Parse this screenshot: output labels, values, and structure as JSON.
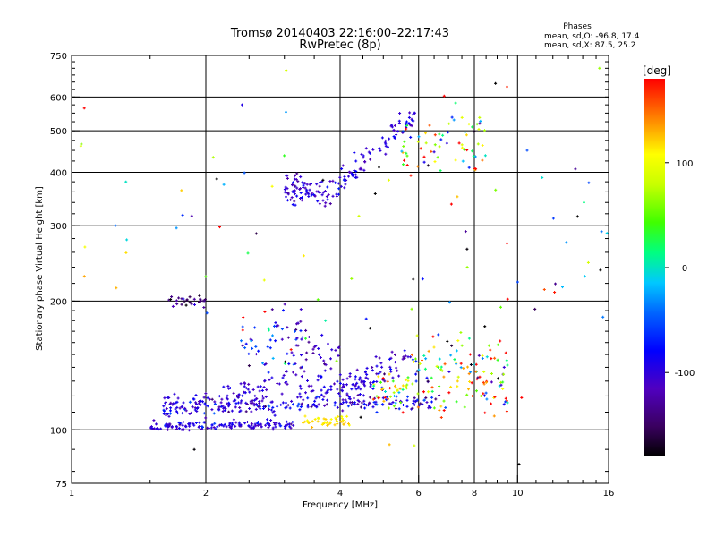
{
  "chart_data": {
    "type": "scatter",
    "title": "Tromsø 20140403 22:16:00–22:17:43",
    "subtitle": "RwPretec (8p)",
    "xlabel": "Frequency [MHz]",
    "ylabel": "Stationary phase Virtual Height [km]",
    "x_scale": "log",
    "y_scale": "log",
    "xlim": [
      1,
      16
    ],
    "ylim": [
      75,
      750
    ],
    "x_ticks": [
      1,
      2,
      4,
      6,
      8,
      10,
      16
    ],
    "x_tick_labels": [
      "1",
      "2",
      "4",
      "6",
      "8",
      "10",
      "16"
    ],
    "y_ticks": [
      75,
      100,
      200,
      300,
      400,
      500,
      600,
      750
    ],
    "y_tick_labels": [
      "75",
      "100",
      "200",
      "300",
      "400",
      "500",
      "600",
      "750"
    ],
    "grid_x": [
      2,
      4,
      6,
      8,
      10
    ],
    "grid_y": [
      100,
      200,
      300,
      400,
      500,
      600
    ],
    "grid": true,
    "stats": {
      "heading": "Phases",
      "line_o": "mean, sd,O: -96.8, 17.4",
      "line_x": "mean, sd,X:  87.5, 25.2"
    },
    "colorbar": {
      "label": "[deg]",
      "range": [
        -180,
        180
      ],
      "ticks": [
        100,
        0,
        -100
      ],
      "tick_labels": [
        "100",
        "0",
        "-100"
      ]
    },
    "point_groups": [
      {
        "x_range": [
          1.5,
          3.2
        ],
        "y_base": 102,
        "y_slope": 0.01,
        "y_spread": 0.012,
        "count": 140,
        "phase_mean": -100,
        "phase_sd": 15
      },
      {
        "x_range": [
          3.3,
          4.2
        ],
        "y_base": 105,
        "y_slope": 0.0,
        "y_spread": 0.015,
        "count": 45,
        "phase_mean": 115,
        "phase_sd": 8
      },
      {
        "x_range": [
          1.6,
          6.5
        ],
        "y_base": 112,
        "y_slope": 0.03,
        "y_spread": 0.02,
        "count": 200,
        "phase_mean": -95,
        "phase_sd": 25
      },
      {
        "x_range": [
          1.6,
          2.5
        ],
        "y_base": 115,
        "y_slope": 0.09,
        "y_spread": 0.03,
        "count": 45,
        "phase_mean": -100,
        "phase_sd": 10
      },
      {
        "x_range": [
          2.2,
          3.2
        ],
        "y_base": 118,
        "y_slope": 0.32,
        "y_spread": 0.04,
        "count": 55,
        "phase_mean": -105,
        "phase_sd": 10
      },
      {
        "x_range": [
          3.2,
          4.6
        ],
        "y_base": 118,
        "y_slope": 0.3,
        "y_spread": 0.04,
        "count": 55,
        "phase_mean": -100,
        "phase_sd": 10
      },
      {
        "x_range": [
          4.0,
          5.8
        ],
        "y_base": 118,
        "y_slope": 0.62,
        "y_spread": 0.04,
        "count": 70,
        "phase_mean": -100,
        "phase_sd": 15
      },
      {
        "x_range": [
          2.4,
          3.3
        ],
        "y_base": 155,
        "y_slope": 0.25,
        "y_spread": 0.09,
        "count": 55,
        "phase_mean": -75,
        "phase_sd": 40
      },
      {
        "x_range": [
          3.2,
          4.0
        ],
        "y_base": 150,
        "y_slope": 0.0,
        "y_spread": 0.06,
        "count": 35,
        "phase_mean": -110,
        "phase_sd": 15
      },
      {
        "x_range": [
          4.7,
          5.7
        ],
        "y_base": 122,
        "y_slope": 0.1,
        "y_spread": 0.04,
        "count": 40,
        "phase_mean": 100,
        "phase_sd": 60
      },
      {
        "x_range": [
          5.8,
          9.5
        ],
        "y_base": 135,
        "y_slope": 0.0,
        "y_spread": 0.11,
        "count": 130,
        "phase_mean": 60,
        "phase_sd": 110
      },
      {
        "x_range": [
          1.65,
          2.0
        ],
        "y_base": 199,
        "y_slope": 0.03,
        "y_spread": 0.02,
        "count": 28,
        "phase_mean": -140,
        "phase_sd": 20
      },
      {
        "x_range": [
          3.0,
          4.0
        ],
        "y_base": 365,
        "y_slope": 0.0,
        "y_spread": 0.04,
        "count": 95,
        "phase_mean": -105,
        "phase_sd": 15
      },
      {
        "x_range": [
          4.0,
          5.9
        ],
        "y_base": 380,
        "y_slope": 0.95,
        "y_spread": 0.035,
        "count": 80,
        "phase_mean": -100,
        "phase_sd": 12
      },
      {
        "x_range": [
          5.5,
          8.5
        ],
        "y_base": 450,
        "y_slope": 0.1,
        "y_spread": 0.1,
        "count": 70,
        "phase_mean": 60,
        "phase_sd": 100
      },
      {
        "x_range": [
          1.0,
          16.0
        ],
        "y_base": 280,
        "y_slope": 0.0,
        "y_spread": 0.55,
        "count": 110,
        "phase_mean": 0,
        "phase_sd": 140
      }
    ]
  }
}
